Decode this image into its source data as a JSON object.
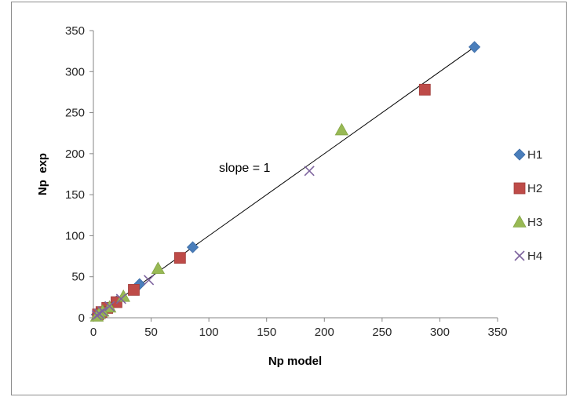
{
  "chart_data": {
    "type": "scatter",
    "xlabel": "Np model",
    "ylabel": "Np  exp",
    "xlim": [
      0,
      350
    ],
    "ylim": [
      0,
      350
    ],
    "xticks": [
      0,
      50,
      100,
      150,
      200,
      250,
      300,
      350
    ],
    "yticks": [
      0,
      50,
      100,
      150,
      200,
      250,
      300,
      350
    ],
    "grid": false,
    "legend_position": "right",
    "annotation": "slope = 1",
    "reference_line": {
      "x": [
        0,
        330
      ],
      "y": [
        0,
        330
      ]
    },
    "series": [
      {
        "name": "H1",
        "marker": "diamond",
        "color": "#4a7ebb",
        "points": [
          [
            330,
            330
          ],
          [
            86,
            86
          ],
          [
            40,
            41
          ],
          [
            20,
            20
          ],
          [
            10,
            10
          ],
          [
            6,
            6
          ],
          [
            3,
            4
          ]
        ]
      },
      {
        "name": "H2",
        "marker": "square",
        "color": "#be4b48",
        "points": [
          [
            287,
            278
          ],
          [
            75,
            73
          ],
          [
            35,
            34
          ],
          [
            20,
            19
          ],
          [
            12,
            12
          ],
          [
            7,
            7
          ],
          [
            4,
            4
          ]
        ]
      },
      {
        "name": "H3",
        "marker": "triangle",
        "color": "#98b954",
        "points": [
          [
            215,
            229
          ],
          [
            56,
            60
          ],
          [
            26,
            26
          ],
          [
            14,
            13
          ],
          [
            8,
            8
          ],
          [
            5,
            5
          ],
          [
            3,
            2
          ]
        ]
      },
      {
        "name": "H4",
        "marker": "x",
        "color": "#7e649e",
        "points": [
          [
            187,
            179
          ],
          [
            48,
            46
          ],
          [
            24,
            23
          ],
          [
            14,
            14
          ],
          [
            8,
            8
          ],
          [
            5,
            5
          ],
          [
            3,
            3
          ]
        ]
      }
    ]
  }
}
